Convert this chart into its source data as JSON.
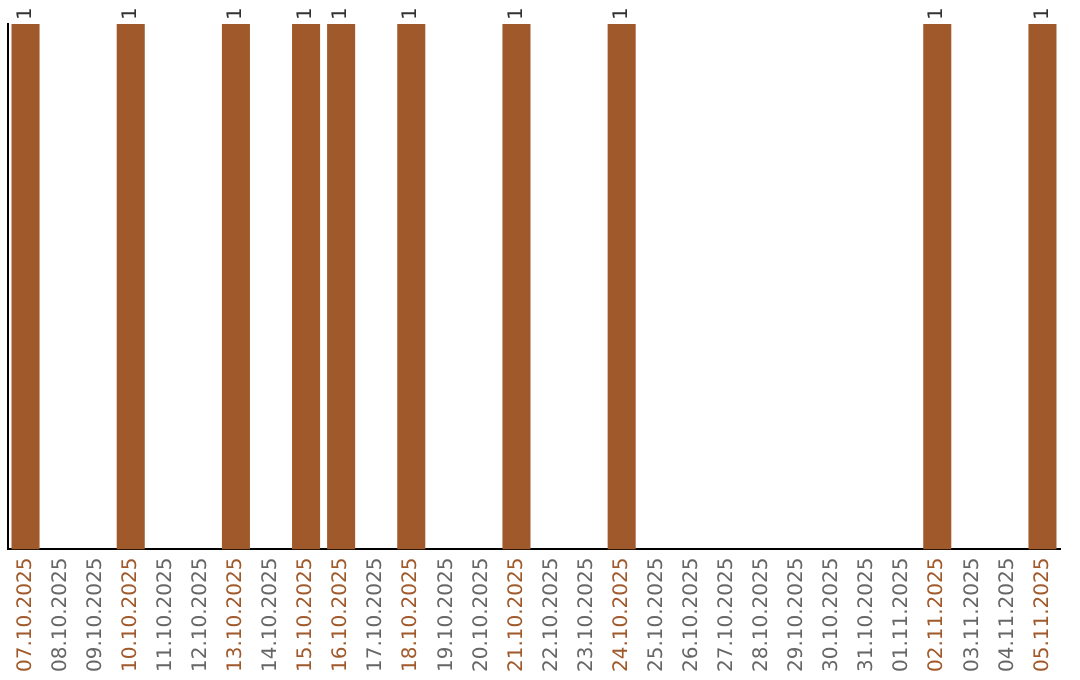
{
  "chart_data": {
    "type": "bar",
    "categories": [
      "07.10.2025",
      "08.10.2025",
      "09.10.2025",
      "10.10.2025",
      "11.10.2025",
      "12.10.2025",
      "13.10.2025",
      "14.10.2025",
      "15.10.2025",
      "16.10.2025",
      "17.10.2025",
      "18.10.2025",
      "19.10.2025",
      "20.10.2025",
      "21.10.2025",
      "22.10.2025",
      "23.10.2025",
      "24.10.2025",
      "25.10.2025",
      "26.10.2025",
      "27.10.2025",
      "28.10.2025",
      "29.10.2025",
      "30.10.2025",
      "31.10.2025",
      "01.11.2025",
      "02.11.2025",
      "03.11.2025",
      "04.11.2025",
      "05.11.2025"
    ],
    "values": [
      1,
      0,
      0,
      1,
      0,
      0,
      1,
      0,
      1,
      1,
      0,
      1,
      0,
      0,
      1,
      0,
      0,
      1,
      0,
      0,
      0,
      0,
      0,
      0,
      0,
      0,
      1,
      0,
      0,
      1
    ],
    "color": "#a0592a",
    "ylim": [
      0,
      1
    ],
    "tick_labels": "x",
    "value_labels": [
      "1",
      null,
      null,
      "1",
      null,
      null,
      "1",
      null,
      "1",
      "1",
      null,
      "1",
      null,
      null,
      "1",
      null,
      null,
      "1",
      null,
      null,
      null,
      null,
      null,
      null,
      null,
      null,
      "1",
      null,
      null,
      "1"
    ],
    "grid": false,
    "legend": false
  }
}
